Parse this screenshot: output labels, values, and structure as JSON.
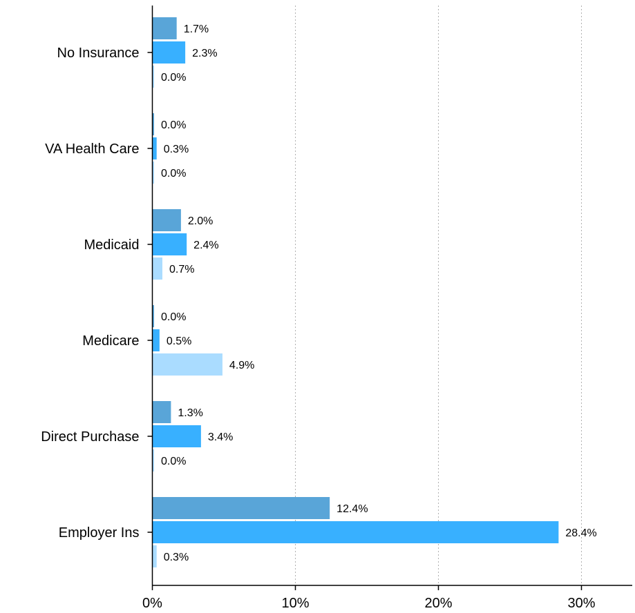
{
  "chart_data": {
    "type": "bar",
    "orientation": "horizontal",
    "categories": [
      "No Insurance",
      "VA Health Care",
      "Medicaid",
      "Medicare",
      "Direct Purchase",
      "Employer Ins"
    ],
    "series": [
      {
        "values": [
          1.7,
          0.0,
          2.0,
          0.0,
          1.3,
          12.4
        ],
        "labels": [
          "1.7%",
          "0.0%",
          "2.0%",
          "0.0%",
          "1.3%",
          "12.4%"
        ],
        "color": "#59a5d8"
      },
      {
        "values": [
          2.3,
          0.3,
          2.4,
          0.5,
          3.4,
          28.4
        ],
        "labels": [
          "2.3%",
          "0.3%",
          "2.4%",
          "0.5%",
          "3.4%",
          "28.4%"
        ],
        "color": "#38b0ff"
      },
      {
        "values": [
          0.0,
          0.0,
          0.7,
          4.9,
          0.0,
          0.3
        ],
        "labels": [
          "0.0%",
          "0.0%",
          "0.7%",
          "4.9%",
          "0.0%",
          "0.3%"
        ],
        "color": "#aadcff"
      }
    ],
    "xlim": [
      0,
      33.6
    ],
    "xticks": [
      0,
      10,
      20,
      30
    ],
    "xtick_labels": [
      "0%",
      "10%",
      "20%",
      "30%"
    ],
    "grid": "vertical-dotted",
    "title": "",
    "xlabel": "",
    "ylabel": ""
  }
}
